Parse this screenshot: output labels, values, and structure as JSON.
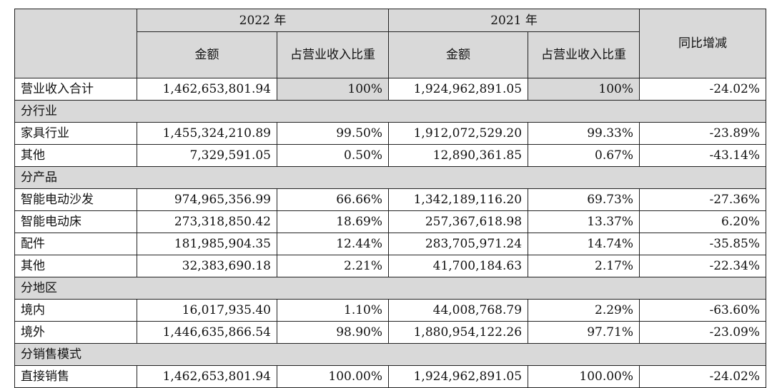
{
  "header": {
    "year_2022": "2022 年",
    "year_2021": "2021 年",
    "amount_2022": "金额",
    "ratio_2022": "占营业收入比重",
    "amount_2021": "金额",
    "ratio_2021": "占营业收入比重",
    "yoy": "同比增减"
  },
  "total": {
    "label": "营业收入合计",
    "amount_2022": "1,462,653,801.94",
    "ratio_2022": "100%",
    "amount_2021": "1,924,962,891.05",
    "ratio_2021": "100%",
    "yoy": "-24.02%"
  },
  "sections": {
    "industry": {
      "title": "分行业",
      "rows": [
        {
          "label": "家具行业",
          "amount_2022": "1,455,324,210.89",
          "ratio_2022": "99.50%",
          "amount_2021": "1,912,072,529.20",
          "ratio_2021": "99.33%",
          "yoy": "-23.89%"
        },
        {
          "label": "其他",
          "amount_2022": "7,329,591.05",
          "ratio_2022": "0.50%",
          "amount_2021": "12,890,361.85",
          "ratio_2021": "0.67%",
          "yoy": "-43.14%"
        }
      ]
    },
    "product": {
      "title": "分产品",
      "rows": [
        {
          "label": "智能电动沙发",
          "amount_2022": "974,965,356.99",
          "ratio_2022": "66.66%",
          "amount_2021": "1,342,189,116.20",
          "ratio_2021": "69.73%",
          "yoy": "-27.36%"
        },
        {
          "label": "智能电动床",
          "amount_2022": "273,318,850.42",
          "ratio_2022": "18.69%",
          "amount_2021": "257,367,618.98",
          "ratio_2021": "13.37%",
          "yoy": "6.20%"
        },
        {
          "label": "配件",
          "amount_2022": "181,985,904.35",
          "ratio_2022": "12.44%",
          "amount_2021": "283,705,971.24",
          "ratio_2021": "14.74%",
          "yoy": "-35.85%"
        },
        {
          "label": "其他",
          "amount_2022": "32,383,690.18",
          "ratio_2022": "2.21%",
          "amount_2021": "41,700,184.63",
          "ratio_2021": "2.17%",
          "yoy": "-22.34%"
        }
      ]
    },
    "region": {
      "title": "分地区",
      "rows": [
        {
          "label": "境内",
          "amount_2022": "16,017,935.40",
          "ratio_2022": "1.10%",
          "amount_2021": "44,008,768.79",
          "ratio_2021": "2.29%",
          "yoy": "-63.60%"
        },
        {
          "label": "境外",
          "amount_2022": "1,446,635,866.54",
          "ratio_2022": "98.90%",
          "amount_2021": "1,880,954,122.26",
          "ratio_2021": "97.71%",
          "yoy": "-23.09%"
        }
      ]
    },
    "sales_mode": {
      "title": "分销售模式",
      "rows": [
        {
          "label": "直接销售",
          "amount_2022": "1,462,653,801.94",
          "ratio_2022": "100.00%",
          "amount_2021": "1,924,962,891.05",
          "ratio_2021": "100.00%",
          "yoy": "-24.02%"
        }
      ]
    }
  }
}
